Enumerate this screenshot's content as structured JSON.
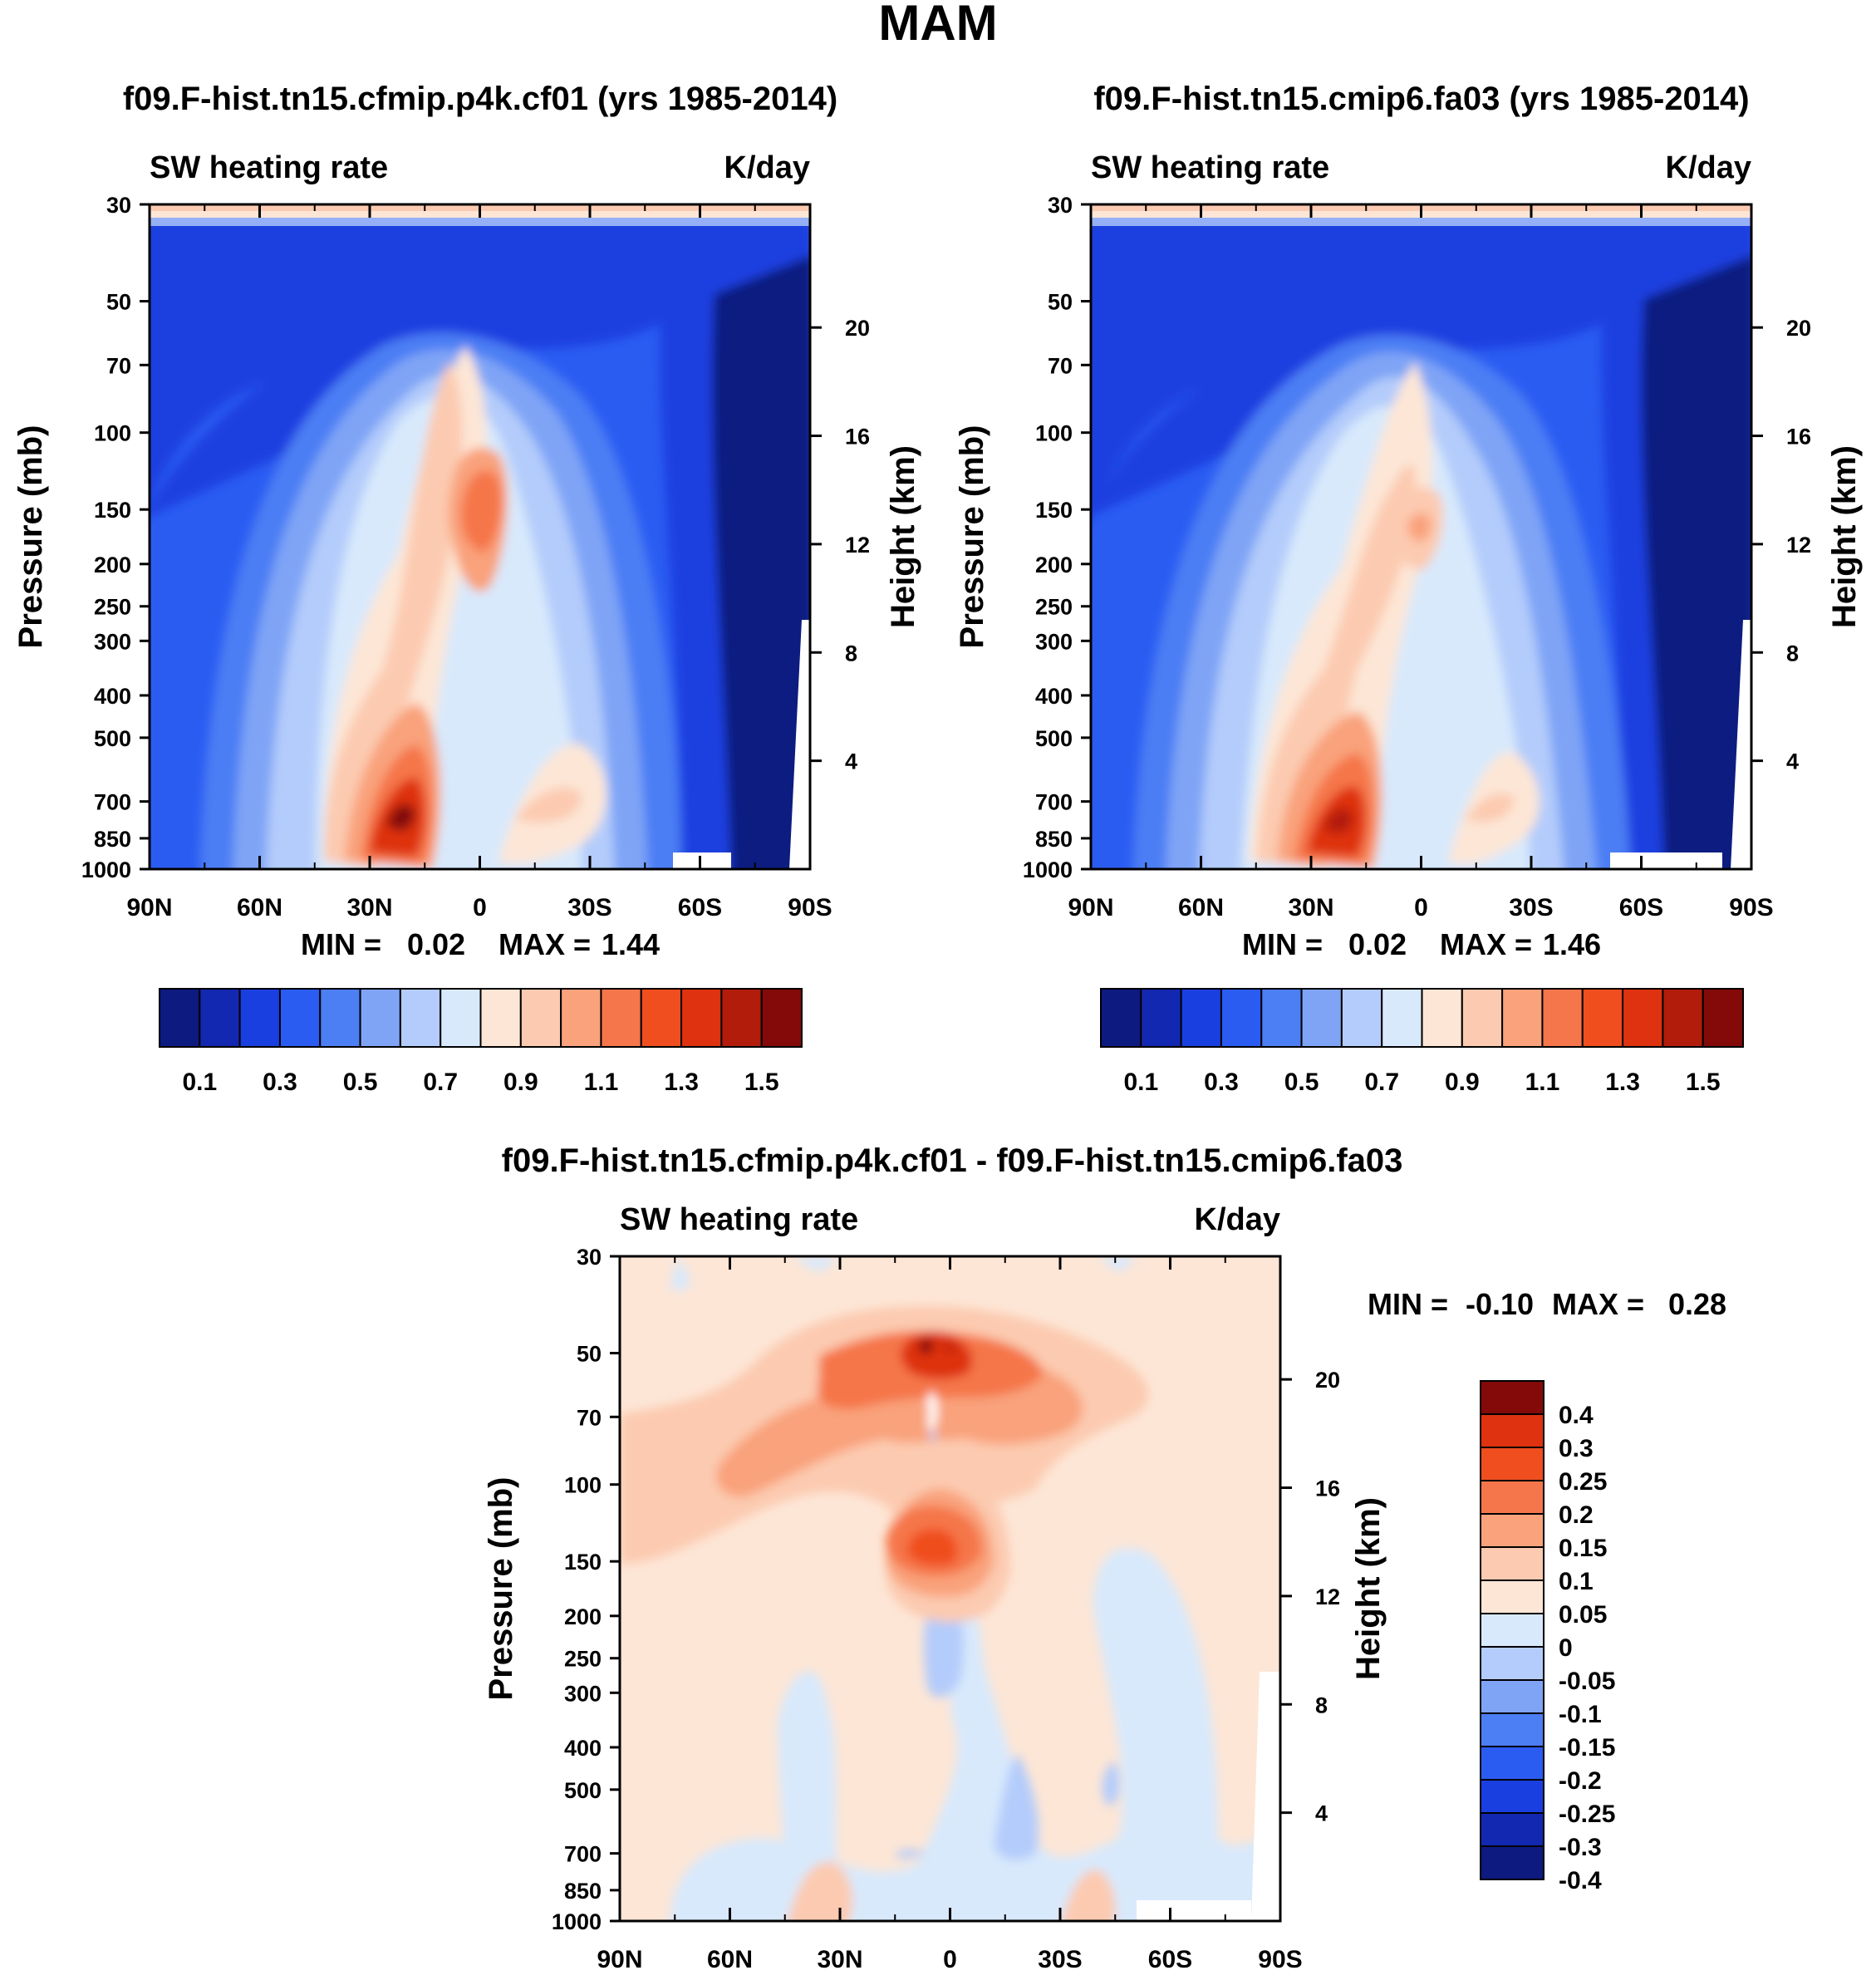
{
  "figure_title": "MAM",
  "colors": {
    "abs_levels": [
      "#0d1a80",
      "#1328b0",
      "#1a3fe0",
      "#2b5cf2",
      "#4c7ef4",
      "#7fa4f6",
      "#b4ccfb",
      "#d8e9fc",
      "#fde6d6",
      "#fccab0",
      "#f9a27c",
      "#f5764a",
      "#f04e1f",
      "#de3210",
      "#b21c0b",
      "#830a08"
    ],
    "diff_levels": [
      "#0d1a80",
      "#1328b0",
      "#1a3fe0",
      "#2b5cf2",
      "#4c7ef4",
      "#7fa4f6",
      "#b4ccfb",
      "#d8e9fc",
      "#fde6d6",
      "#fccab0",
      "#f9a27c",
      "#f5764a",
      "#f04e1f",
      "#de3210",
      "#830a08"
    ]
  },
  "chart_data": [
    {
      "type": "heatmap",
      "id": "panel1",
      "title": "f09.F-hist.tn15.cfmip.p4k.cf01 (yrs 1985-2014)",
      "left_label": "SW heating rate",
      "right_label": "K/day",
      "ylabel": "Pressure (mb)",
      "y2label": "Height (km)",
      "x_ticks": [
        "90N",
        "60N",
        "30N",
        "0",
        "30S",
        "60S",
        "90S"
      ],
      "x_range": [
        90,
        -90
      ],
      "y_ticks": [
        "30",
        "50",
        "70",
        "100",
        "150",
        "200",
        "250",
        "300",
        "400",
        "500",
        "700",
        "850",
        "1000"
      ],
      "y_range": [
        30,
        1000
      ],
      "height_ticks": [
        "20",
        "16",
        "12",
        "8",
        "4"
      ],
      "stats": {
        "min_label": "MIN =",
        "min": "0.02",
        "max_label": "MAX =",
        "max": "1.44"
      },
      "colorbar_labels": [
        "0.1",
        "0.3",
        "0.5",
        "0.7",
        "0.9",
        "1.1",
        "1.3",
        "1.5"
      ]
    },
    {
      "type": "heatmap",
      "id": "panel2",
      "title": "f09.F-hist.tn15.cmip6.fa03 (yrs 1985-2014)",
      "left_label": "SW heating rate",
      "right_label": "K/day",
      "ylabel": "Pressure (mb)",
      "y2label": "Height (km)",
      "x_ticks": [
        "90N",
        "60N",
        "30N",
        "0",
        "30S",
        "60S",
        "90S"
      ],
      "x_range": [
        90,
        -90
      ],
      "y_ticks": [
        "30",
        "50",
        "70",
        "100",
        "150",
        "200",
        "250",
        "300",
        "400",
        "500",
        "700",
        "850",
        "1000"
      ],
      "y_range": [
        30,
        1000
      ],
      "height_ticks": [
        "20",
        "16",
        "12",
        "8",
        "4"
      ],
      "stats": {
        "min_label": "MIN =",
        "min": "0.02",
        "max_label": "MAX =",
        "max": "1.46"
      },
      "colorbar_labels": [
        "0.1",
        "0.3",
        "0.5",
        "0.7",
        "0.9",
        "1.1",
        "1.3",
        "1.5"
      ]
    },
    {
      "type": "heatmap",
      "id": "panel3",
      "title": "f09.F-hist.tn15.cfmip.p4k.cf01 - f09.F-hist.tn15.cmip6.fa03",
      "left_label": "SW heating rate",
      "right_label": "K/day",
      "ylabel": "Pressure (mb)",
      "y2label": "Height (km)",
      "x_ticks": [
        "90N",
        "60N",
        "30N",
        "0",
        "30S",
        "60S",
        "90S"
      ],
      "x_range": [
        90,
        -90
      ],
      "y_ticks": [
        "30",
        "50",
        "70",
        "100",
        "150",
        "200",
        "250",
        "300",
        "400",
        "500",
        "700",
        "850",
        "1000"
      ],
      "y_range": [
        30,
        1000
      ],
      "height_ticks": [
        "20",
        "16",
        "12",
        "8",
        "4"
      ],
      "stats": {
        "min_label": "MIN =",
        "min": "-0.10",
        "max_label": "MAX =",
        "max": "0.28"
      },
      "colorbar_labels": [
        "0.4",
        "0.3",
        "0.25",
        "0.2",
        "0.15",
        "0.1",
        "0.05",
        "0",
        "-0.05",
        "-0.1",
        "-0.15",
        "-0.2",
        "-0.25",
        "-0.3",
        "-0.4"
      ]
    }
  ]
}
